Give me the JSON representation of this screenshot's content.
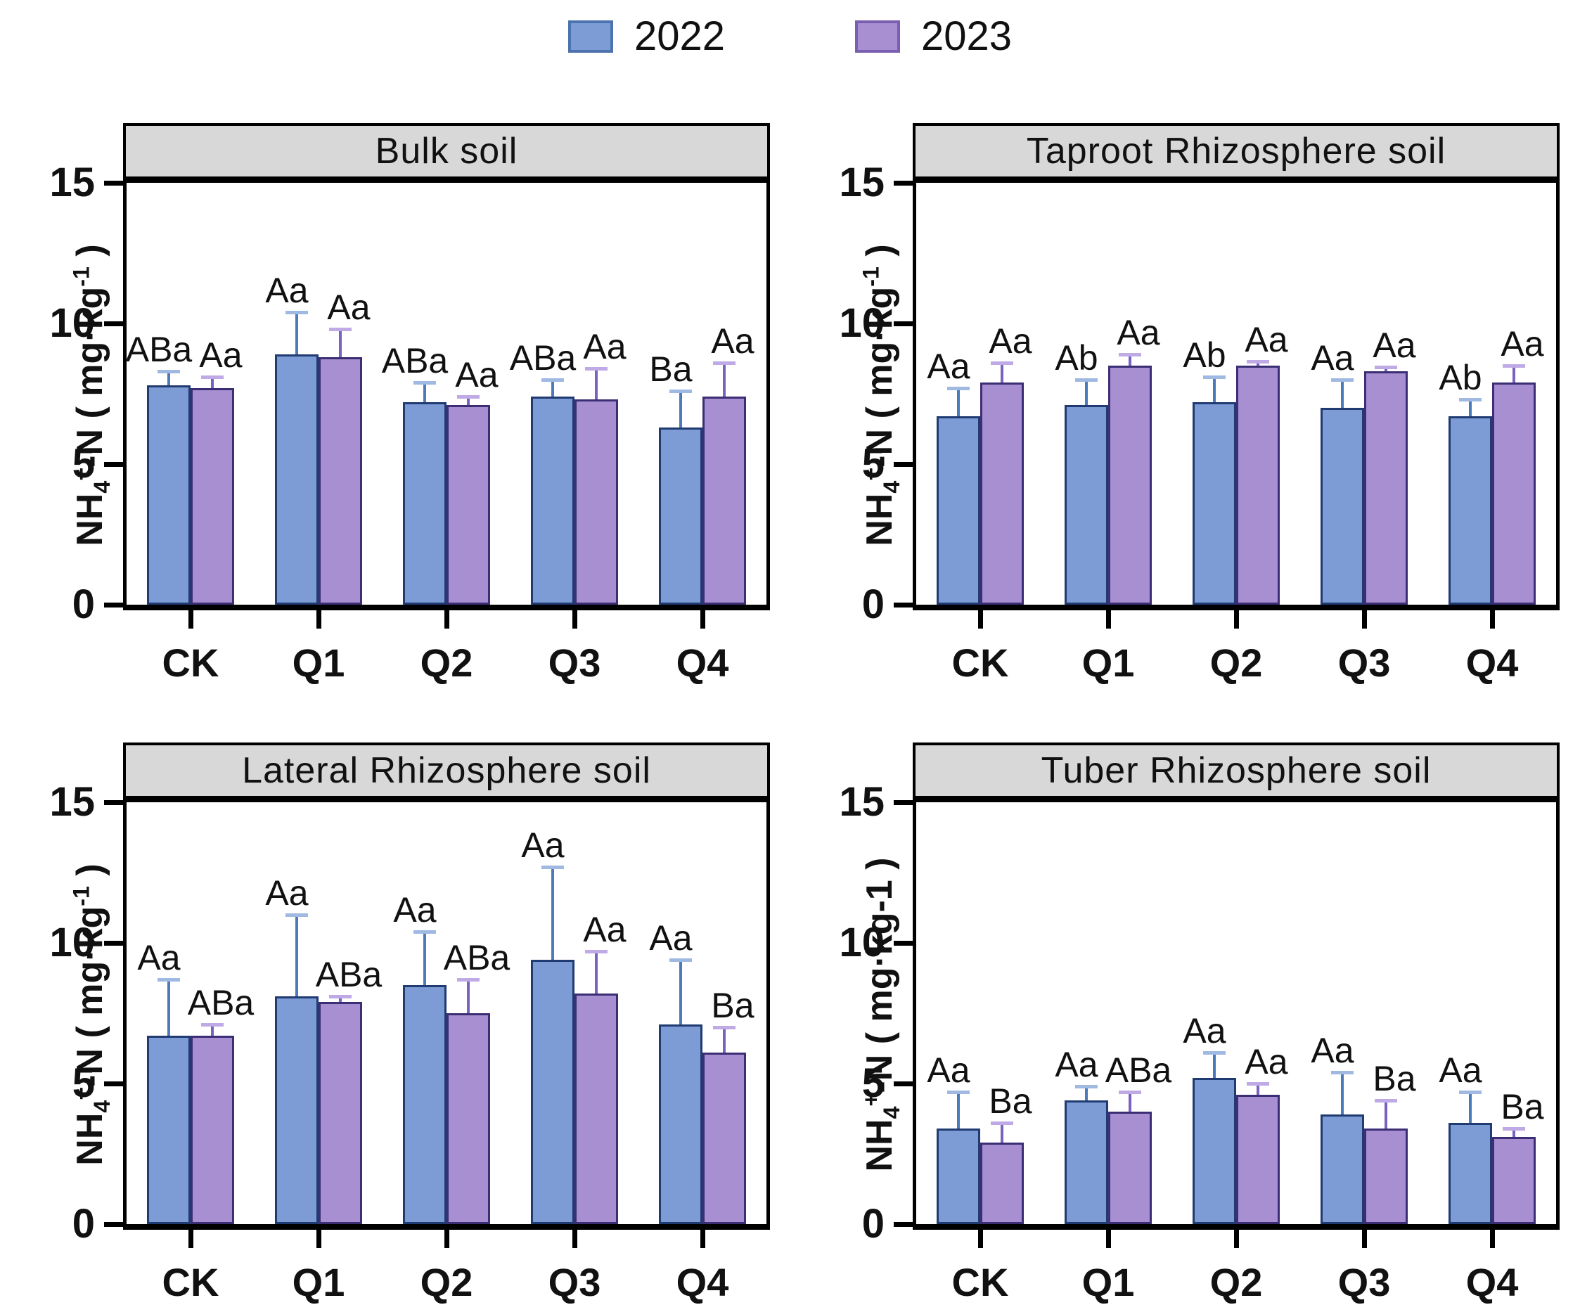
{
  "legend": {
    "items": [
      {
        "label": "2022",
        "color": "#7d9cd6",
        "border": "#4d73ae"
      },
      {
        "label": "2023",
        "color": "#a78fd2",
        "border": "#7a5fb0"
      }
    ]
  },
  "colors": {
    "band_bg": "#d8d8d8",
    "axis": "#000000",
    "series": [
      {
        "fill": "#7d9cd6",
        "stroke": "#203a72",
        "err_stem": "#4d79bd",
        "err_cap": "#9fb9e2"
      },
      {
        "fill": "#a78fd2",
        "stroke": "#3c2e75",
        "err_stem": "#7b61c0",
        "err_cap": "#bfaae6"
      }
    ]
  },
  "chart_data": [
    {
      "type": "bar",
      "title": "Bulk soil",
      "categories": [
        "CK",
        "Q1",
        "Q2",
        "Q3",
        "Q4"
      ],
      "ylim": [
        0,
        15
      ],
      "yticks": [
        0,
        5,
        10,
        15
      ],
      "grid": false,
      "legend_position": "top-center",
      "ylabel": {
        "pre": "NH",
        "sub": "4",
        "sup": "+",
        "mid": "-N ( mg·kg",
        "exp": "-1",
        "post": " )",
        "exp_style": "sup"
      },
      "series": [
        {
          "name": "2022",
          "values": [
            7.8,
            8.9,
            7.2,
            7.4,
            6.3
          ],
          "errors": [
            0.5,
            1.5,
            0.7,
            0.6,
            1.3
          ],
          "letters": [
            "ABa",
            "Aa",
            "ABa",
            "ABa",
            "Ba"
          ]
        },
        {
          "name": "2023",
          "values": [
            7.7,
            8.8,
            7.1,
            7.3,
            7.4
          ],
          "errors": [
            0.4,
            1.0,
            0.3,
            1.1,
            1.2
          ],
          "letters": [
            "Aa",
            "Aa",
            "Aa",
            "Aa",
            "Aa"
          ]
        }
      ]
    },
    {
      "type": "bar",
      "title": "Taproot Rhizosphere soil",
      "categories": [
        "CK",
        "Q1",
        "Q2",
        "Q3",
        "Q4"
      ],
      "ylim": [
        0,
        15
      ],
      "yticks": [
        0,
        5,
        10,
        15
      ],
      "grid": false,
      "legend_position": "top-center",
      "ylabel": {
        "pre": "NH",
        "sub": "4",
        "sup": "+",
        "mid": "-N ( mg·kg",
        "exp": "-1",
        "post": " )",
        "exp_style": "sup"
      },
      "series": [
        {
          "name": "2022",
          "values": [
            6.7,
            7.1,
            7.2,
            7.0,
            6.7
          ],
          "errors": [
            1.0,
            0.9,
            0.9,
            1.0,
            0.6
          ],
          "letters": [
            "Aa",
            "Ab",
            "Ab",
            "Aa",
            "Ab"
          ]
        },
        {
          "name": "2023",
          "values": [
            7.9,
            8.5,
            8.5,
            8.3,
            7.9
          ],
          "errors": [
            0.7,
            0.4,
            0.15,
            0.15,
            0.6
          ],
          "letters": [
            "Aa",
            "Aa",
            "Aa",
            "Aa",
            "Aa"
          ]
        }
      ]
    },
    {
      "type": "bar",
      "title": "Lateral Rhizosphere soil",
      "categories": [
        "CK",
        "Q1",
        "Q2",
        "Q3",
        "Q4"
      ],
      "ylim": [
        0,
        15
      ],
      "yticks": [
        0,
        5,
        10,
        15
      ],
      "grid": false,
      "legend_position": "top-center",
      "ylabel": {
        "pre": "NH",
        "sub": "4",
        "sup": "+",
        "mid": "-N ( mg·kg",
        "exp": "-1",
        "post": " )",
        "exp_style": "sup"
      },
      "series": [
        {
          "name": "2022",
          "values": [
            6.7,
            8.1,
            8.5,
            9.4,
            7.1
          ],
          "errors": [
            2.0,
            2.9,
            1.9,
            3.3,
            2.3
          ],
          "letters": [
            "Aa",
            "Aa",
            "Aa",
            "Aa",
            "Aa"
          ]
        },
        {
          "name": "2023",
          "values": [
            6.7,
            7.9,
            7.5,
            8.2,
            6.1
          ],
          "errors": [
            0.4,
            0.2,
            1.2,
            1.5,
            0.9
          ],
          "letters": [
            "ABa",
            "ABa",
            "ABa",
            "Aa",
            "Ba"
          ]
        }
      ]
    },
    {
      "type": "bar",
      "title": "Tuber Rhizosphere soil",
      "categories": [
        "CK",
        "Q1",
        "Q2",
        "Q3",
        "Q4"
      ],
      "ylim": [
        0,
        15
      ],
      "yticks": [
        0,
        5,
        10,
        15
      ],
      "grid": false,
      "legend_position": "top-center",
      "ylabel": {
        "pre": "NH",
        "sub": "4",
        "sup": "+",
        "mid": "-N ( mg·kg",
        "exp": "-1",
        "post": " )",
        "exp_style": "inline"
      },
      "series": [
        {
          "name": "2022",
          "values": [
            3.4,
            4.4,
            5.2,
            3.9,
            3.6
          ],
          "errors": [
            1.3,
            0.5,
            0.9,
            1.5,
            1.1
          ],
          "letters": [
            "Aa",
            "Aa",
            "Aa",
            "Aa",
            "Aa"
          ]
        },
        {
          "name": "2023",
          "values": [
            2.9,
            4.0,
            4.6,
            3.4,
            3.1
          ],
          "errors": [
            0.7,
            0.7,
            0.4,
            1.0,
            0.3
          ],
          "letters": [
            "Ba",
            "ABa",
            "Aa",
            "Ba",
            "Ba"
          ]
        }
      ]
    }
  ]
}
